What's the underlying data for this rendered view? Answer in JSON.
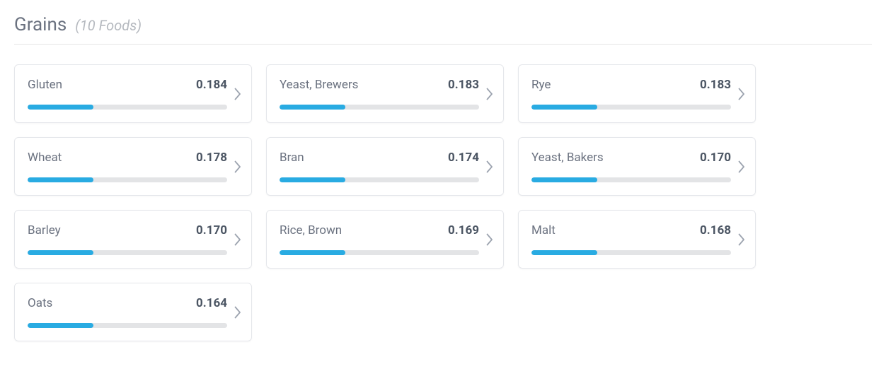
{
  "header": {
    "title": "Grains",
    "subtitle": "(10 Foods)"
  },
  "styles": {
    "progress_fill_color": "#29abe2",
    "progress_track_color": "#e3e4e6",
    "card_border_color": "#e5e7eb",
    "chevron_color": "#9ca3af"
  },
  "items": [
    {
      "name": "Gluten",
      "value": "0.184",
      "progress_pct": 33
    },
    {
      "name": "Yeast, Brewers",
      "value": "0.183",
      "progress_pct": 33
    },
    {
      "name": "Rye",
      "value": "0.183",
      "progress_pct": 33
    },
    {
      "name": "Wheat",
      "value": "0.178",
      "progress_pct": 33
    },
    {
      "name": "Bran",
      "value": "0.174",
      "progress_pct": 33
    },
    {
      "name": "Yeast, Bakers",
      "value": "0.170",
      "progress_pct": 33
    },
    {
      "name": "Barley",
      "value": "0.170",
      "progress_pct": 33
    },
    {
      "name": "Rice, Brown",
      "value": "0.169",
      "progress_pct": 33
    },
    {
      "name": "Malt",
      "value": "0.168",
      "progress_pct": 33
    },
    {
      "name": "Oats",
      "value": "0.164",
      "progress_pct": 33
    }
  ]
}
